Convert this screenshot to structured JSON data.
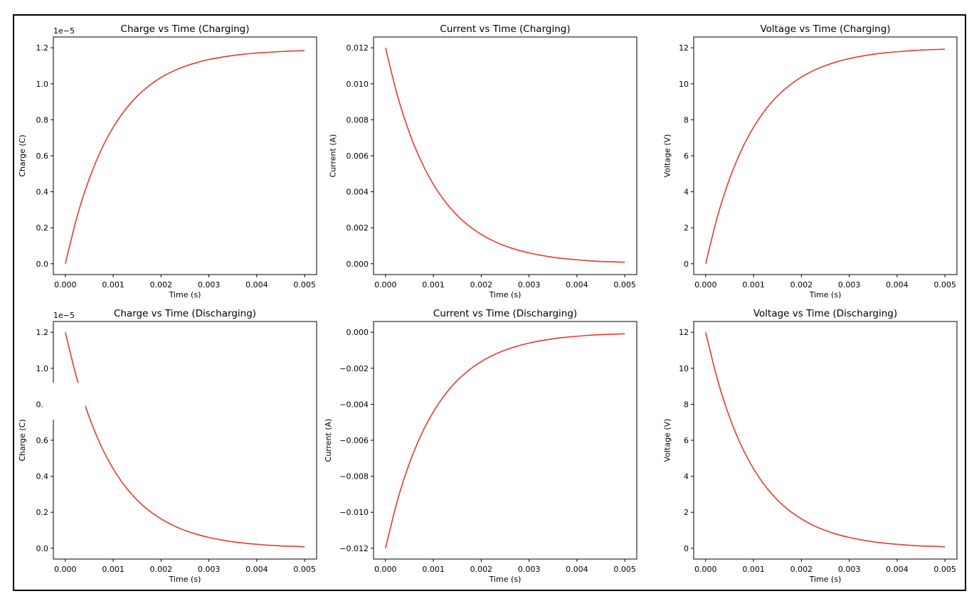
{
  "colors": {
    "line": "#e8392a",
    "frame": "#000000",
    "background": "#ffffff"
  },
  "chart_data": [
    {
      "type": "line",
      "title": "Charge vs Time (Charging)",
      "xlabel": "Time (s)",
      "ylabel": "Charge (C)",
      "y_offset_label": "1e−5",
      "xlim": [
        -0.00025,
        0.00525
      ],
      "ylim": [
        -0.06,
        1.26
      ],
      "x_ticks": [
        0,
        0.001,
        0.002,
        0.003,
        0.004,
        0.005
      ],
      "x_tick_labels": [
        "0.000",
        "0.001",
        "0.002",
        "0.003",
        "0.004",
        "0.005"
      ],
      "y_ticks": [
        0,
        0.2,
        0.4,
        0.6,
        0.8,
        1.0,
        1.2
      ],
      "y_tick_labels": [
        "0.0",
        "0.2",
        "0.4",
        "0.6",
        "0.8",
        "1.0",
        "1.2"
      ],
      "grid": false,
      "series": [
        {
          "x": [
            0,
            0.00025,
            0.0005,
            0.00075,
            0.001,
            0.00125,
            0.0015,
            0.00175,
            0.002,
            0.00225,
            0.0025,
            0.00275,
            0.003,
            0.00325,
            0.0035,
            0.00375,
            0.004,
            0.00425,
            0.0045,
            0.00475,
            0.005
          ],
          "values": [
            0.0,
            0.266,
            0.472,
            0.633,
            0.758,
            0.855,
            0.931,
            0.989,
            1.035,
            1.07,
            1.097,
            1.118,
            1.135,
            1.147,
            1.157,
            1.165,
            1.171,
            1.175,
            1.179,
            1.182,
            1.184
          ]
        }
      ]
    },
    {
      "type": "line",
      "title": "Current vs Time (Charging)",
      "xlabel": "Time (s)",
      "ylabel": "Current (A)",
      "y_offset_label": "",
      "xlim": [
        -0.00025,
        0.00525
      ],
      "ylim": [
        -0.0006,
        0.0126
      ],
      "x_ticks": [
        0,
        0.001,
        0.002,
        0.003,
        0.004,
        0.005
      ],
      "x_tick_labels": [
        "0.000",
        "0.001",
        "0.002",
        "0.003",
        "0.004",
        "0.005"
      ],
      "y_ticks": [
        0,
        0.002,
        0.004,
        0.006,
        0.008,
        0.01,
        0.012
      ],
      "y_tick_labels": [
        "0.000",
        "0.002",
        "0.004",
        "0.006",
        "0.008",
        "0.010",
        "0.012"
      ],
      "grid": false,
      "series": [
        {
          "x": [
            0,
            0.00025,
            0.0005,
            0.00075,
            0.001,
            0.00125,
            0.0015,
            0.00175,
            0.002,
            0.00225,
            0.0025,
            0.00275,
            0.003,
            0.00325,
            0.0035,
            0.00375,
            0.004,
            0.00425,
            0.0045,
            0.00475,
            0.005
          ],
          "values": [
            0.012,
            0.00934,
            0.00728,
            0.00567,
            0.00442,
            0.00344,
            0.00268,
            0.00209,
            0.00163,
            0.00127,
            0.00099,
            0.00077,
            0.0006,
            0.00047,
            0.00036,
            0.00028,
            0.00022,
            0.00017,
            0.00013,
            0.00011,
            8e-05
          ]
        }
      ]
    },
    {
      "type": "line",
      "title": "Voltage vs Time (Charging)",
      "xlabel": "Time (s)",
      "ylabel": "Voltage (V)",
      "y_offset_label": "",
      "xlim": [
        -0.00025,
        0.00525
      ],
      "ylim": [
        -0.6,
        12.6
      ],
      "x_ticks": [
        0,
        0.001,
        0.002,
        0.003,
        0.004,
        0.005
      ],
      "x_tick_labels": [
        "0.000",
        "0.001",
        "0.002",
        "0.003",
        "0.004",
        "0.005"
      ],
      "y_ticks": [
        0,
        2,
        4,
        6,
        8,
        10,
        12
      ],
      "y_tick_labels": [
        "0",
        "2",
        "4",
        "6",
        "8",
        "10",
        "12"
      ],
      "grid": false,
      "series": [
        {
          "x": [
            0,
            0.00025,
            0.0005,
            0.00075,
            0.001,
            0.00125,
            0.0015,
            0.00175,
            0.002,
            0.00225,
            0.0025,
            0.00275,
            0.003,
            0.00325,
            0.0035,
            0.00375,
            0.004,
            0.00425,
            0.0045,
            0.00475,
            0.005
          ],
          "values": [
            0.0,
            2.66,
            4.72,
            6.33,
            7.58,
            8.56,
            9.32,
            9.91,
            10.37,
            10.73,
            11.01,
            11.23,
            11.4,
            11.53,
            11.64,
            11.72,
            11.78,
            11.83,
            11.87,
            11.9,
            11.92
          ]
        }
      ]
    },
    {
      "type": "line",
      "title": "Charge vs Time (Discharging)",
      "xlabel": "Time (s)",
      "ylabel": "Charge (C)",
      "y_offset_label": "1e−5",
      "xlim": [
        -0.00025,
        0.00525
      ],
      "ylim": [
        -0.06,
        1.26
      ],
      "x_ticks": [
        0,
        0.001,
        0.002,
        0.003,
        0.004,
        0.005
      ],
      "x_tick_labels": [
        "0.000",
        "0.001",
        "0.002",
        "0.003",
        "0.004",
        "0.005"
      ],
      "y_ticks": [
        0,
        0.2,
        0.4,
        0.6,
        0.8,
        1.0,
        1.2
      ],
      "y_tick_labels": [
        "0.0",
        "0.2",
        "0.4",
        "0.6",
        "0.8",
        "1.0",
        "1.2"
      ],
      "grid": false,
      "series": [
        {
          "x": [
            0,
            0.00025,
            0.0005,
            0.00075,
            0.001,
            0.00125,
            0.0015,
            0.00175,
            0.002,
            0.00225,
            0.0025,
            0.00275,
            0.003,
            0.00325,
            0.0035,
            0.00375,
            0.004,
            0.00425,
            0.0045,
            0.00475,
            0.005
          ],
          "values": [
            1.2,
            0.934,
            0.728,
            0.567,
            0.442,
            0.344,
            0.268,
            0.209,
            0.163,
            0.127,
            0.099,
            0.077,
            0.06,
            0.047,
            0.036,
            0.028,
            0.022,
            0.017,
            0.013,
            0.011,
            0.008
          ]
        }
      ]
    },
    {
      "type": "line",
      "title": "Current vs Time (Discharging)",
      "xlabel": "Time (s)",
      "ylabel": "Current (A)",
      "y_offset_label": "",
      "xlim": [
        -0.00025,
        0.00525
      ],
      "ylim": [
        -0.0126,
        0.0006
      ],
      "x_ticks": [
        0,
        0.001,
        0.002,
        0.003,
        0.004,
        0.005
      ],
      "x_tick_labels": [
        "0.000",
        "0.001",
        "0.002",
        "0.003",
        "0.004",
        "0.005"
      ],
      "y_ticks": [
        -0.012,
        -0.01,
        -0.008,
        -0.006,
        -0.004,
        -0.002,
        0
      ],
      "y_tick_labels": [
        "−0.012",
        "−0.010",
        "−0.008",
        "−0.006",
        "−0.004",
        "−0.002",
        "0.000"
      ],
      "grid": false,
      "series": [
        {
          "x": [
            0,
            0.00025,
            0.0005,
            0.00075,
            0.001,
            0.00125,
            0.0015,
            0.00175,
            0.002,
            0.00225,
            0.0025,
            0.00275,
            0.003,
            0.00325,
            0.0035,
            0.00375,
            0.004,
            0.00425,
            0.0045,
            0.00475,
            0.005
          ],
          "values": [
            -0.012,
            -0.00934,
            -0.00728,
            -0.00567,
            -0.00442,
            -0.00344,
            -0.00268,
            -0.00209,
            -0.00163,
            -0.00127,
            -0.00099,
            -0.00077,
            -0.0006,
            -0.00047,
            -0.00036,
            -0.00028,
            -0.00022,
            -0.00017,
            -0.00013,
            -0.00011,
            -8e-05
          ]
        }
      ]
    },
    {
      "type": "line",
      "title": "Voltage vs Time (Discharging)",
      "xlabel": "Time (s)",
      "ylabel": "Voltage (V)",
      "y_offset_label": "",
      "xlim": [
        -0.00025,
        0.00525
      ],
      "ylim": [
        -0.6,
        12.6
      ],
      "x_ticks": [
        0,
        0.001,
        0.002,
        0.003,
        0.004,
        0.005
      ],
      "x_tick_labels": [
        "0.000",
        "0.001",
        "0.002",
        "0.003",
        "0.004",
        "0.005"
      ],
      "y_ticks": [
        0,
        2,
        4,
        6,
        8,
        10,
        12
      ],
      "y_tick_labels": [
        "0",
        "2",
        "4",
        "6",
        "8",
        "10",
        "12"
      ],
      "grid": false,
      "series": [
        {
          "x": [
            0,
            0.00025,
            0.0005,
            0.00075,
            0.001,
            0.00125,
            0.0015,
            0.00175,
            0.002,
            0.00225,
            0.0025,
            0.00275,
            0.003,
            0.00325,
            0.0035,
            0.00375,
            0.004,
            0.00425,
            0.0045,
            0.00475,
            0.005
          ],
          "values": [
            12.0,
            9.34,
            7.28,
            5.67,
            4.42,
            3.44,
            2.68,
            2.09,
            1.63,
            1.27,
            0.99,
            0.77,
            0.6,
            0.47,
            0.36,
            0.28,
            0.22,
            0.17,
            0.13,
            0.11,
            0.08
          ]
        }
      ]
    }
  ]
}
